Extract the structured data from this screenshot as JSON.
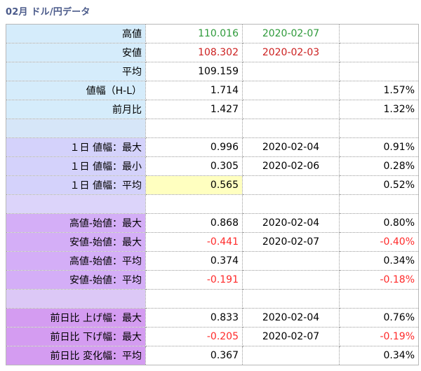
{
  "title": "02月 ドル/円データ",
  "colors": {
    "high": "#2e9a3a",
    "low": "#cc1f1f",
    "negative": "#ff2a2a",
    "highlight": "#ffffc0"
  },
  "rows": [
    {
      "label": "高値",
      "value": "110.016",
      "date": "2020-02-07",
      "pct": "",
      "bg": "#d5ecfb",
      "valueColor": "#2e9a3a",
      "dateColor": "#2e9a3a"
    },
    {
      "label": "安値",
      "value": "108.302",
      "date": "2020-02-03",
      "pct": "",
      "bg": "#d5ecfb",
      "valueColor": "#cc1f1f",
      "dateColor": "#cc1f1f"
    },
    {
      "label": "平均",
      "value": "109.159",
      "date": "",
      "pct": "",
      "bg": "#d5ecfb"
    },
    {
      "label": "値幅（H-L）",
      "value": "1.714",
      "date": "",
      "pct": "1.57%",
      "bg": "#d5ecfb"
    },
    {
      "label": "前月比",
      "value": "1.427",
      "date": "",
      "pct": "1.32%",
      "bg": "#d5ecfb"
    },
    {
      "label": "",
      "value": "",
      "date": "",
      "pct": "",
      "bg": "#d6e6f8"
    },
    {
      "label": "１日 値幅：最大",
      "value": "0.996",
      "date": "2020-02-04",
      "pct": "0.91%",
      "bg": "#d4d2fb"
    },
    {
      "label": "１日 値幅：最小",
      "value": "0.305",
      "date": "2020-02-06",
      "pct": "0.28%",
      "bg": "#d4d2fb"
    },
    {
      "label": "１日 値幅：平均",
      "value": "0.565",
      "date": "",
      "pct": "0.52%",
      "bg": "#d4d2fb",
      "highlight": true
    },
    {
      "label": "",
      "value": "",
      "date": "",
      "pct": "",
      "bg": "#dcd4fa"
    },
    {
      "label": "高値-始値：最大",
      "value": "0.868",
      "date": "2020-02-04",
      "pct": "0.80%",
      "bg": "#d4aef7"
    },
    {
      "label": "安値-始値：最大",
      "value": "-0.441",
      "date": "2020-02-07",
      "pct": "-0.40%",
      "bg": "#d4aef7",
      "valueColor": "#ff2a2a",
      "pctColor": "#ff2a2a"
    },
    {
      "label": "高値-始値：平均",
      "value": "0.374",
      "date": "",
      "pct": "0.34%",
      "bg": "#d4aef7"
    },
    {
      "label": "安値-始値：平均",
      "value": "-0.191",
      "date": "",
      "pct": "-0.18%",
      "bg": "#d4aef7",
      "valueColor": "#ff2a2a",
      "pctColor": "#ff2a2a"
    },
    {
      "label": "",
      "value": "",
      "date": "",
      "pct": "",
      "bg": "#dcc8f6"
    },
    {
      "label": "前日比 上げ幅：最大",
      "value": "0.833",
      "date": "2020-02-04",
      "pct": "0.76%",
      "bg": "#d49cf1"
    },
    {
      "label": "前日比 下げ幅：最大",
      "value": "-0.205",
      "date": "2020-02-07",
      "pct": "-0.19%",
      "bg": "#d49cf1",
      "valueColor": "#ff2a2a",
      "pctColor": "#ff2a2a"
    },
    {
      "label": "前日比 変化幅：平均",
      "value": "0.367",
      "date": "",
      "pct": "0.34%",
      "bg": "#d49cf1"
    }
  ]
}
